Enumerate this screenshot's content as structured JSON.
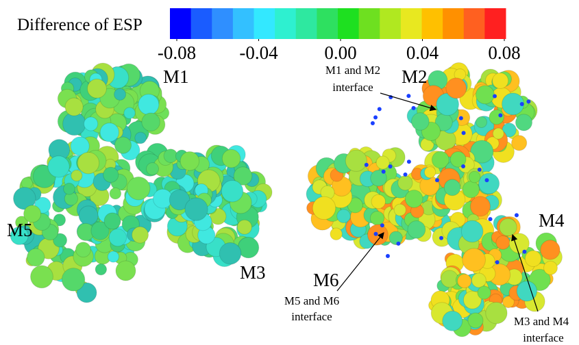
{
  "colorbar": {
    "title": "Difference of ESP",
    "range": [
      -0.08,
      0.08
    ],
    "ticks": [
      -0.08,
      -0.04,
      {
        "value": 0,
        "label": "0.00"
      },
      0.04,
      0.08
    ]
  },
  "labels": {
    "m1": "M1",
    "m2": "M2",
    "m3": "M3",
    "m4": "M4",
    "m5": "M5",
    "m6": "M6",
    "m1_m2_interface": [
      "M1 and M2",
      "interface"
    ],
    "m5_m6_interface": [
      "M5 and M6",
      "interface"
    ],
    "m3_m4_interface": [
      "M3 and M4",
      "interface"
    ]
  }
}
